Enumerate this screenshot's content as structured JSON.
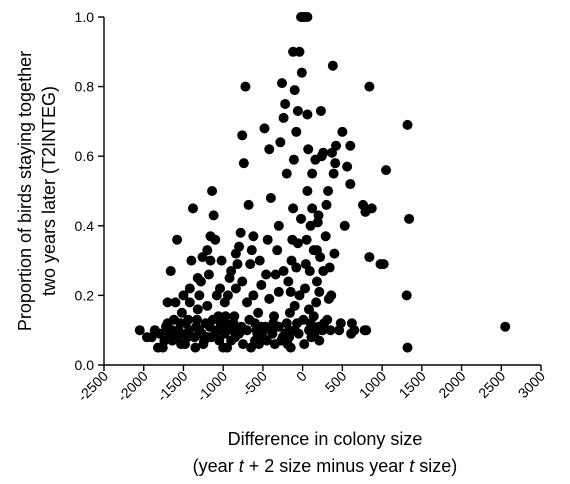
{
  "chart_data": {
    "type": "scatter",
    "xlabel_line1": "Difference in colony size",
    "xlabel_line2_parts": [
      "(year ",
      "t",
      " + 2 size minus year ",
      "t",
      " size)"
    ],
    "ylabel_line1": "Proportion of birds staying together",
    "ylabel_line2": "two years later (T2INTEG)",
    "xlim": [
      -2500,
      3000
    ],
    "ylim": [
      0.0,
      1.0
    ],
    "x_ticks": [
      -2500,
      -2000,
      -1500,
      -1000,
      -500,
      0,
      500,
      1000,
      1500,
      2000,
      2500,
      3000
    ],
    "x_tick_labels": [
      "-2500",
      "-2000",
      "-1500",
      "-1000",
      "-500",
      "0",
      "500",
      "1000",
      "1500",
      "2000",
      "2500",
      "3000"
    ],
    "y_ticks": [
      0.0,
      0.2,
      0.4,
      0.6,
      0.8,
      1.0
    ],
    "y_tick_labels": [
      "0.0",
      "0.2",
      "0.4",
      "0.6",
      "0.8",
      "1.0"
    ],
    "grid": false,
    "marker_color": "#000000",
    "points": [
      [
        2550,
        0.11
      ],
      [
        1320,
        0.69
      ],
      [
        1340,
        0.42
      ],
      [
        1310,
        0.2
      ],
      [
        1320,
        0.05
      ],
      [
        1050,
        0.56
      ],
      [
        1020,
        0.29
      ],
      [
        980,
        0.29
      ],
      [
        870,
        0.45
      ],
      [
        840,
        0.8
      ],
      [
        840,
        0.31
      ],
      [
        790,
        0.44
      ],
      [
        800,
        0.1
      ],
      [
        780,
        0.1
      ],
      [
        760,
        0.46
      ],
      [
        650,
        0.1
      ],
      [
        620,
        0.12
      ],
      [
        610,
        0.09
      ],
      [
        600,
        0.52
      ],
      [
        600,
        0.63
      ],
      [
        560,
        0.57
      ],
      [
        530,
        0.4
      ],
      [
        500,
        0.67
      ],
      [
        480,
        0.12
      ],
      [
        460,
        0.1
      ],
      [
        420,
        0.63
      ],
      [
        410,
        0.58
      ],
      [
        400,
        0.32
      ],
      [
        390,
        0.55
      ],
      [
        380,
        0.86
      ],
      [
        370,
        0.61
      ],
      [
        360,
        0.2
      ],
      [
        340,
        0.28
      ],
      [
        320,
        0.5
      ],
      [
        300,
        0.46
      ],
      [
        290,
        0.37
      ],
      [
        270,
        0.12
      ],
      [
        260,
        0.61
      ],
      [
        240,
        0.6
      ],
      [
        230,
        0.73
      ],
      [
        220,
        0.31
      ],
      [
        210,
        0.21
      ],
      [
        200,
        0.11
      ],
      [
        190,
        0.41
      ],
      [
        180,
        0.24
      ],
      [
        170,
        0.18
      ],
      [
        160,
        0.59
      ],
      [
        150,
        0.1
      ],
      [
        140,
        0.33
      ],
      [
        120,
        0.55
      ],
      [
        100,
        0.12
      ],
      [
        90,
        0.27
      ],
      [
        80,
        0.1
      ],
      [
        70,
        0.62
      ],
      [
        60,
        0.72
      ],
      [
        50,
        0.36
      ],
      [
        40,
        0.29
      ],
      [
        30,
        0.22
      ],
      [
        20,
        0.06
      ],
      [
        10,
        0.13
      ],
      [
        0,
        1.0
      ],
      [
        30,
        1.0
      ],
      [
        60,
        1.0
      ],
      [
        -20,
        1.0
      ],
      [
        -10,
        0.84
      ],
      [
        -40,
        0.9
      ],
      [
        -60,
        0.73
      ],
      [
        -80,
        0.67
      ],
      [
        -100,
        0.79
      ],
      [
        -110,
        0.59
      ],
      [
        -120,
        0.45
      ],
      [
        -130,
        0.36
      ],
      [
        -140,
        0.3
      ],
      [
        -150,
        0.21
      ],
      [
        -160,
        0.15
      ],
      [
        -170,
        0.1
      ],
      [
        -180,
        0.09
      ],
      [
        -190,
        0.06
      ],
      [
        -120,
        0.9
      ],
      [
        -200,
        0.55
      ],
      [
        -220,
        0.75
      ],
      [
        -240,
        0.71
      ],
      [
        -260,
        0.81
      ],
      [
        -280,
        0.64
      ],
      [
        -300,
        0.4
      ],
      [
        -320,
        0.33
      ],
      [
        -340,
        0.26
      ],
      [
        -360,
        0.14
      ],
      [
        -380,
        0.09
      ],
      [
        -400,
        0.48
      ],
      [
        -420,
        0.62
      ],
      [
        -440,
        0.36
      ],
      [
        -460,
        0.26
      ],
      [
        -480,
        0.68
      ],
      [
        -500,
        0.1
      ],
      [
        -520,
        0.11
      ],
      [
        -540,
        0.3
      ],
      [
        -560,
        0.15
      ],
      [
        -580,
        0.1
      ],
      [
        -600,
        0.07
      ],
      [
        -620,
        0.37
      ],
      [
        -640,
        0.33
      ],
      [
        -660,
        0.29
      ],
      [
        -680,
        0.46
      ],
      [
        -700,
        0.18
      ],
      [
        -720,
        0.8
      ],
      [
        -740,
        0.58
      ],
      [
        -760,
        0.66
      ],
      [
        -780,
        0.38
      ],
      [
        -800,
        0.34
      ],
      [
        -820,
        0.29
      ],
      [
        -840,
        0.22
      ],
      [
        -860,
        0.14
      ],
      [
        -880,
        0.1
      ],
      [
        -900,
        0.07
      ],
      [
        -920,
        0.25
      ],
      [
        -940,
        0.2
      ],
      [
        -960,
        0.12
      ],
      [
        -980,
        0.09
      ],
      [
        -1000,
        0.05
      ],
      [
        -1020,
        0.3
      ],
      [
        -1040,
        0.22
      ],
      [
        -1060,
        0.14
      ],
      [
        -1080,
        0.1
      ],
      [
        -1100,
        0.36
      ],
      [
        -1120,
        0.43
      ],
      [
        -1140,
        0.5
      ],
      [
        -1160,
        0.37
      ],
      [
        -1180,
        0.26
      ],
      [
        -1200,
        0.17
      ],
      [
        -1220,
        0.12
      ],
      [
        -1240,
        0.07
      ],
      [
        -1260,
        0.31
      ],
      [
        -1280,
        0.24
      ],
      [
        -1300,
        0.2
      ],
      [
        -1320,
        0.16
      ],
      [
        -1340,
        0.11
      ],
      [
        -1360,
        0.08
      ],
      [
        -1380,
        0.45
      ],
      [
        -1400,
        0.3
      ],
      [
        -1420,
        0.22
      ],
      [
        -1440,
        0.13
      ],
      [
        -1460,
        0.09
      ],
      [
        -1480,
        0.06
      ],
      [
        -1500,
        0.2
      ],
      [
        -1520,
        0.15
      ],
      [
        -1540,
        0.12
      ],
      [
        -1560,
        0.1
      ],
      [
        -1580,
        0.36
      ],
      [
        -1600,
        0.18
      ],
      [
        -1620,
        0.13
      ],
      [
        -1640,
        0.1
      ],
      [
        -1660,
        0.27
      ],
      [
        -1680,
        0.09
      ],
      [
        -1700,
        0.18
      ],
      [
        -1720,
        0.11
      ],
      [
        -1740,
        0.07
      ],
      [
        -1760,
        0.05
      ],
      [
        -1800,
        0.09
      ],
      [
        -1820,
        0.05
      ],
      [
        -1860,
        0.1
      ],
      [
        -1900,
        0.08
      ],
      [
        -1960,
        0.08
      ],
      [
        -2050,
        0.1
      ],
      [
        -1300,
        0.1
      ],
      [
        -1200,
        0.08
      ],
      [
        -1100,
        0.09
      ],
      [
        -1000,
        0.1
      ],
      [
        -900,
        0.11
      ],
      [
        -800,
        0.09
      ],
      [
        -700,
        0.1
      ],
      [
        -600,
        0.12
      ],
      [
        -500,
        0.08
      ],
      [
        -400,
        0.1
      ],
      [
        -300,
        0.11
      ],
      [
        -200,
        0.12
      ],
      [
        -100,
        0.1
      ],
      [
        -50,
        0.09
      ],
      [
        150,
        0.09
      ],
      [
        250,
        0.1
      ],
      [
        350,
        0.1
      ],
      [
        -1450,
        0.08
      ],
      [
        -1350,
        0.05
      ],
      [
        -1250,
        0.06
      ],
      [
        -1150,
        0.08
      ],
      [
        -1050,
        0.07
      ],
      [
        -950,
        0.05
      ],
      [
        -850,
        0.08
      ],
      [
        -750,
        0.06
      ],
      [
        -650,
        0.05
      ],
      [
        -550,
        0.06
      ],
      [
        -450,
        0.07
      ],
      [
        -350,
        0.06
      ],
      [
        -250,
        0.08
      ],
      [
        -150,
        0.05
      ],
      [
        -1570,
        0.08
      ],
      [
        -1530,
        0.06
      ],
      [
        -1470,
        0.12
      ],
      [
        -1430,
        0.1
      ],
      [
        -1330,
        0.13
      ],
      [
        -1270,
        0.09
      ],
      [
        -1170,
        0.11
      ],
      [
        -1130,
        0.13
      ],
      [
        -1030,
        0.12
      ],
      [
        -970,
        0.14
      ],
      [
        -870,
        0.12
      ],
      [
        -770,
        0.11
      ],
      [
        -670,
        0.13
      ],
      [
        -570,
        0.09
      ],
      [
        -470,
        0.11
      ],
      [
        -370,
        0.12
      ],
      [
        -270,
        0.07
      ],
      [
        -220,
        0.09
      ],
      [
        -170,
        0.08
      ],
      [
        -70,
        0.12
      ],
      [
        110,
        0.08
      ],
      [
        210,
        0.07
      ],
      [
        310,
        0.13
      ],
      [
        -1700,
        0.12
      ],
      [
        -1640,
        0.07
      ],
      [
        -1420,
        0.18
      ],
      [
        -1320,
        0.25
      ],
      [
        -1200,
        0.33
      ],
      [
        -1160,
        0.3
      ],
      [
        -1080,
        0.2
      ],
      [
        -980,
        0.18
      ],
      [
        -900,
        0.27
      ],
      [
        -840,
        0.32
      ],
      [
        -760,
        0.24
      ],
      [
        -620,
        0.2
      ],
      [
        -520,
        0.23
      ],
      [
        -420,
        0.19
      ],
      [
        -300,
        0.21
      ],
      [
        -240,
        0.27
      ],
      [
        -180,
        0.24
      ],
      [
        -100,
        0.17
      ],
      [
        -40,
        0.2
      ],
      [
        80,
        0.16
      ],
      [
        140,
        0.14
      ],
      [
        180,
        0.33
      ],
      [
        200,
        0.43
      ],
      [
        260,
        0.27
      ],
      [
        330,
        0.19
      ],
      [
        100,
        0.4
      ],
      [
        120,
        0.45
      ],
      [
        60,
        0.5
      ],
      [
        -20,
        0.42
      ],
      [
        -60,
        0.35
      ],
      [
        -80,
        0.28
      ]
    ]
  }
}
